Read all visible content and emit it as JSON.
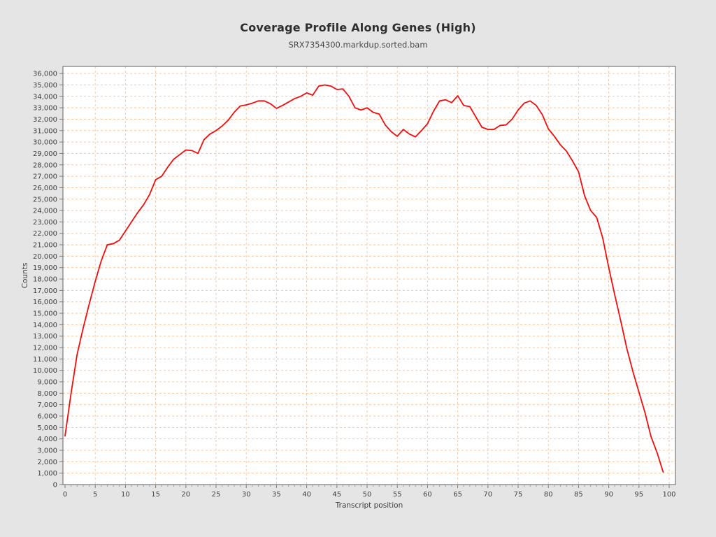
{
  "page": {
    "title": "Coverage Profile Along Genes (High)",
    "subtitle": "SRX7354300.markdup.sorted.bam"
  },
  "chart_data": {
    "type": "line",
    "title": "Coverage Profile Along Genes (High)",
    "subtitle": "SRX7354300.markdup.sorted.bam",
    "xlabel": "Transcript position",
    "ylabel": "Counts",
    "xlim": [
      0,
      100
    ],
    "ylim": [
      0,
      36000
    ],
    "x_ticks": [
      0,
      5,
      10,
      15,
      20,
      25,
      30,
      35,
      40,
      45,
      50,
      55,
      60,
      65,
      70,
      75,
      80,
      85,
      90,
      95,
      100
    ],
    "y_ticks": [
      0,
      1000,
      2000,
      3000,
      4000,
      5000,
      6000,
      7000,
      8000,
      9000,
      10000,
      11000,
      12000,
      13000,
      14000,
      15000,
      16000,
      17000,
      18000,
      19000,
      20000,
      21000,
      22000,
      23000,
      24000,
      25000,
      26000,
      27000,
      28000,
      29000,
      30000,
      31000,
      32000,
      33000,
      34000,
      35000,
      36000
    ],
    "y_tick_format": "thousands-comma",
    "grid": "dashed",
    "legend_position": "none",
    "colors": {
      "line": "#f20d0d",
      "grid": "#f5c8a2",
      "plot_background": "#ffffff",
      "figure_background": "#e5e5e5",
      "axis_frame": "#7a7a7a",
      "tick_label": "#3f3f3f"
    },
    "series": [
      {
        "name": "SRX7354300.markdup.sorted.bam",
        "x_start": 0,
        "x_step": 1,
        "x": [
          0,
          1,
          2,
          3,
          4,
          5,
          6,
          7,
          8,
          9,
          10,
          11,
          12,
          13,
          14,
          15,
          16,
          17,
          18,
          19,
          20,
          21,
          22,
          23,
          24,
          25,
          26,
          27,
          28,
          29,
          30,
          31,
          32,
          33,
          34,
          35,
          36,
          37,
          38,
          39,
          40,
          41,
          42,
          43,
          44,
          45,
          46,
          47,
          48,
          49,
          50,
          51,
          52,
          53,
          54,
          55,
          56,
          57,
          58,
          59,
          60,
          61,
          62,
          63,
          64,
          65,
          66,
          67,
          68,
          69,
          70,
          71,
          72,
          73,
          74,
          75,
          76,
          77,
          78,
          79,
          80,
          81,
          82,
          83,
          84,
          85,
          86,
          87,
          88,
          89,
          90,
          91,
          92,
          93,
          94,
          95,
          96,
          97,
          98,
          99
        ],
        "values": [
          4250,
          8000,
          11400,
          13700,
          15800,
          17800,
          19600,
          21000,
          21100,
          21400,
          22200,
          23000,
          23800,
          24500,
          25400,
          26700,
          27000,
          27800,
          28500,
          28900,
          29300,
          29250,
          29000,
          30200,
          30700,
          31000,
          31400,
          31900,
          32600,
          33150,
          33250,
          33400,
          33600,
          33600,
          33350,
          32950,
          33200,
          33500,
          33800,
          34000,
          34300,
          34100,
          34900,
          35000,
          34900,
          34600,
          34650,
          34000,
          33000,
          32800,
          33000,
          32600,
          32450,
          31500,
          30900,
          30500,
          31100,
          30700,
          30450,
          31000,
          31600,
          32700,
          33600,
          33700,
          33450,
          34050,
          33200,
          33100,
          32200,
          31300,
          31100,
          31100,
          31450,
          31500,
          32000,
          32800,
          33400,
          33600,
          33200,
          32400,
          31150,
          30500,
          29750,
          29200,
          28350,
          27400,
          25300,
          24000,
          23400,
          21600,
          19000,
          16600,
          14300,
          11900,
          9900,
          8100,
          6300,
          4200,
          2800,
          1100
        ]
      }
    ]
  }
}
